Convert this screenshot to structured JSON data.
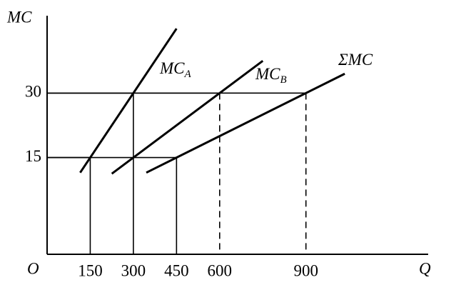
{
  "chart_data": {
    "type": "line",
    "y_label": "MC",
    "x_label": "Q",
    "origin_label": "O",
    "xlim": [
      0,
      1325
    ],
    "ylim": [
      -7.5,
      48
    ],
    "xticks": [
      150,
      300,
      450,
      600,
      900
    ],
    "yticks": [
      15,
      30
    ],
    "color": "#000000",
    "series": [
      {
        "name": "MC",
        "subscript": "A",
        "x": [
          115,
          450
        ],
        "values": [
          11.5,
          45
        ]
      },
      {
        "name": "MC",
        "subscript": "B",
        "x": [
          225,
          750
        ],
        "values": [
          11.25,
          37.5
        ]
      },
      {
        "name": "ΣMC",
        "x": [
          345,
          1035
        ],
        "values": [
          11.5,
          34.5
        ]
      }
    ],
    "guides": [
      {
        "x": 150,
        "y": 15,
        "dashed": false
      },
      {
        "x": 300,
        "y": 30,
        "dashed": false
      },
      {
        "x": 450,
        "y": 15,
        "dashed": false
      },
      {
        "x": 600,
        "y": 30,
        "dashed": true
      },
      {
        "x": 900,
        "y": 30,
        "dashed": true
      }
    ]
  }
}
